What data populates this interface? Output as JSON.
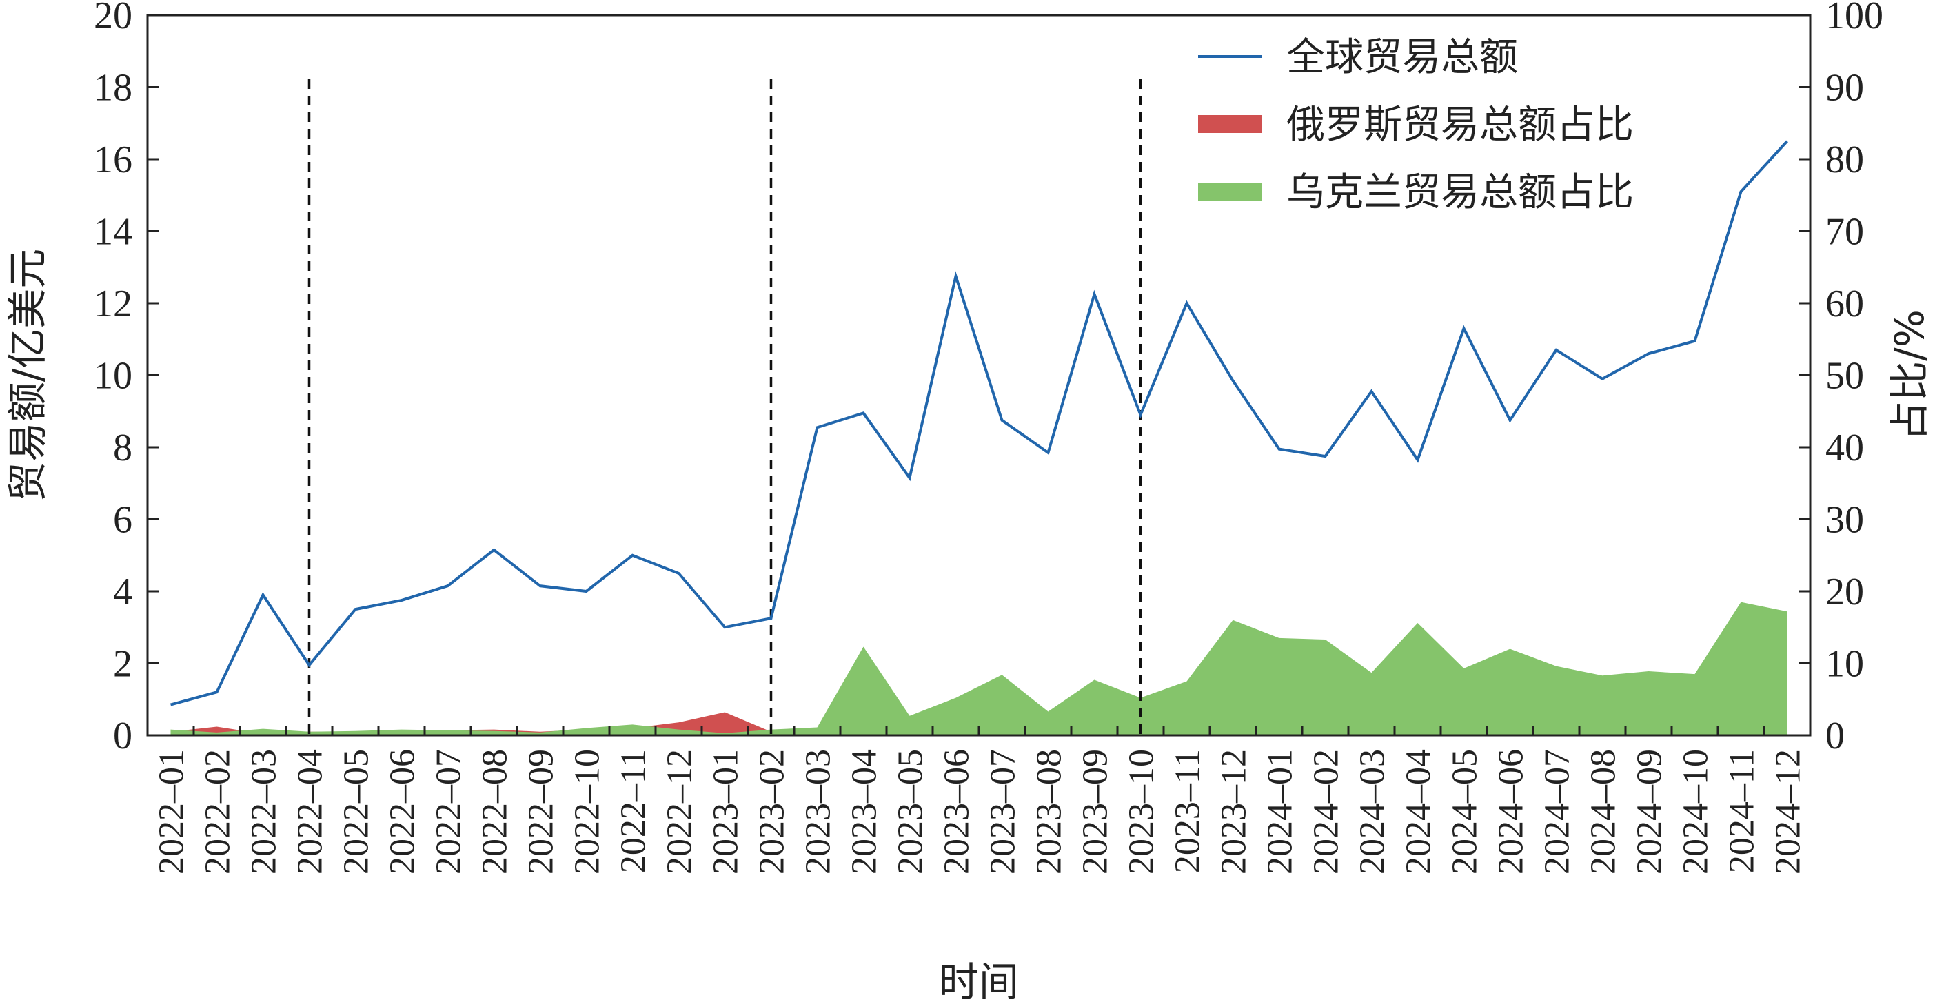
{
  "chart_data": {
    "type": "line",
    "xlabel": "时间",
    "ylabel_left": "贸易额/亿美元",
    "ylabel_right": "占比/%",
    "ylim_left": [
      0,
      20
    ],
    "ylim_right": [
      0,
      100
    ],
    "yticks_left": [
      "0",
      "2",
      "4",
      "6",
      "8",
      "10",
      "12",
      "14",
      "16",
      "18",
      "20"
    ],
    "yticks_right": [
      "0",
      "10",
      "20",
      "30",
      "40",
      "50",
      "60",
      "70",
      "80",
      "90",
      "100"
    ],
    "categories": [
      "2022–01",
      "2022–02",
      "2022–03",
      "2022–04",
      "2022–05",
      "2022–06",
      "2022–07",
      "2022–08",
      "2022–09",
      "2022–10",
      "2022–11",
      "2022–12",
      "2023–01",
      "2023–02",
      "2023–03",
      "2023–04",
      "2023–05",
      "2023–06",
      "2023–07",
      "2023–08",
      "2023–09",
      "2023–10",
      "2023–11",
      "2023–12",
      "2024–01",
      "2024–02",
      "2024–03",
      "2024–04",
      "2024–05",
      "2024–06",
      "2024–07",
      "2024–08",
      "2024–09",
      "2024–10",
      "2024–11",
      "2024–12"
    ],
    "vlines": [
      "2022–04",
      "2023–02",
      "2023–10"
    ],
    "grid": false,
    "legend_position": "top-right",
    "series": [
      {
        "name": "全球贸易总额",
        "type": "line",
        "axis": "left",
        "color": "#2166ac",
        "values": [
          0.85,
          1.2,
          3.9,
          1.95,
          3.5,
          3.75,
          4.15,
          5.15,
          4.15,
          4.0,
          5.0,
          4.5,
          3.0,
          3.25,
          8.55,
          8.95,
          7.15,
          12.75,
          8.75,
          7.85,
          12.25,
          8.9,
          12.0,
          9.85,
          7.95,
          7.75,
          9.55,
          7.65,
          11.3,
          8.75,
          10.7,
          9.9,
          10.6,
          10.95,
          15.1,
          16.5
        ]
      },
      {
        "name": "俄罗斯贸易总额占比",
        "type": "area",
        "axis": "right",
        "color": "#d05050",
        "values": [
          0.5,
          1.2,
          0.2,
          0.5,
          0.5,
          0.5,
          0.7,
          0.8,
          0.5,
          0.8,
          1.0,
          1.8,
          3.2,
          0.5,
          0.3,
          1.0,
          0.5,
          0.3,
          0.5,
          0.4,
          0.6,
          1.2,
          0.3,
          0.1,
          0.1,
          0.1,
          0.2,
          0.2,
          0.2,
          0.1,
          0.1,
          0.1,
          0.1,
          0.1,
          0.1,
          0.5
        ]
      },
      {
        "name": "乌克兰贸易总额占比",
        "type": "area",
        "axis": "right",
        "color": "#85c46b",
        "values": [
          0.8,
          0.4,
          0.9,
          0.5,
          0.6,
          0.8,
          0.7,
          0.6,
          0.4,
          1.0,
          1.5,
          0.8,
          0.3,
          0.8,
          1.1,
          12.3,
          2.7,
          5.2,
          8.4,
          3.3,
          7.7,
          5.2,
          7.5,
          16.0,
          13.5,
          13.3,
          8.7,
          15.6,
          9.3,
          12.0,
          9.6,
          8.3,
          8.9,
          8.5,
          18.5,
          17.2
        ]
      }
    ]
  }
}
